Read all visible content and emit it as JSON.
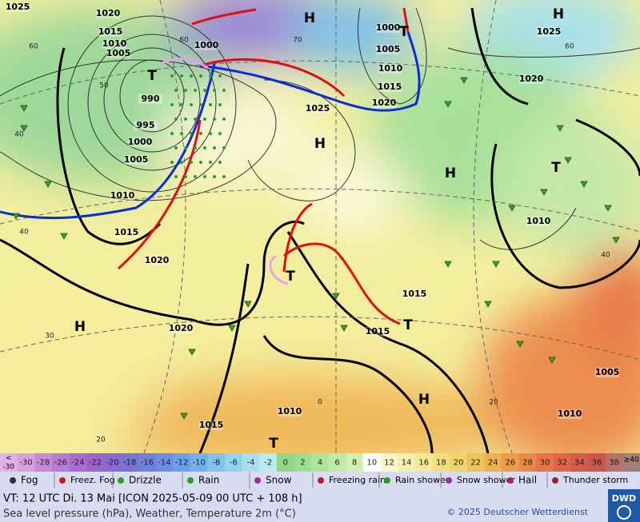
{
  "map": {
    "pressure_labels": [
      "1025",
      "1020",
      "1015",
      "1010",
      "1005",
      "1000",
      "990",
      "995",
      "1000",
      "1005",
      "1010",
      "1015",
      "1020",
      "1020",
      "1025",
      "1000",
      "1005",
      "1010",
      "1015",
      "1020",
      "1025",
      "1020",
      "1010",
      "1015",
      "1015",
      "1010",
      "1015",
      "1010",
      "1005"
    ],
    "pressure_centers": [
      "H",
      "H",
      "T",
      "T",
      "H",
      "H",
      "T",
      "T",
      "H",
      "T",
      "H",
      "T"
    ],
    "temperature_labels": [
      "60",
      "50",
      "40",
      "40",
      "30",
      "20",
      "0",
      "70",
      "60",
      "60",
      "40",
      "20"
    ]
  },
  "colorbar": {
    "low_label": [
      "<",
      "-30"
    ],
    "high_label": [
      "≥40",
      ""
    ],
    "labels": [
      "-30",
      "-28",
      "-26",
      "-24",
      "-22",
      "-20",
      "-18",
      "-16",
      "-14",
      "-12",
      "-10",
      "-8",
      "-6",
      "-4",
      "-2",
      "0",
      "2",
      "4",
      "6",
      "8",
      "10",
      "12",
      "14",
      "16",
      "18",
      "20",
      "22",
      "24",
      "26",
      "28",
      "30",
      "32",
      "34",
      "36",
      "38"
    ],
    "colors": [
      "#d9a0e0",
      "#c88ad8",
      "#b87ad2",
      "#a86ccc",
      "#9a66cc",
      "#8a6ad0",
      "#7a72d6",
      "#6f7fdc",
      "#6a8ee2",
      "#6aa0e6",
      "#72b2ea",
      "#80c4ee",
      "#92d4f0",
      "#a6e0ee",
      "#b8ecea",
      "#8fd88a",
      "#9ede92",
      "#aee49c",
      "#bfeaa8",
      "#d0f0b4",
      "#ffffff",
      "#f9f6c8",
      "#f6f0b0",
      "#f4e894",
      "#f2de7c",
      "#f0d468",
      "#eec45a",
      "#eeb050",
      "#ec9c4a",
      "#ea8846",
      "#e67446",
      "#e06448",
      "#d45a4a",
      "#c8584c",
      "#b8706a"
    ],
    "low_color": "#e0b0e8",
    "high_color": "#a08078"
  },
  "legend": [
    "Fog",
    "Freez. Fog",
    "Drizzle",
    "Rain",
    "Snow",
    "Freezing rain",
    "Rain shower",
    "Snow shower",
    "Hail",
    "Thunder storm"
  ],
  "footer": {
    "line1": "VT: 12 UTC Di.  13 Mai [ICON 2025-05-09  00 UTC + 108 h]",
    "line2": "Sea level pressure (hPa), Weather, Temperature 2m (°C)",
    "copyright": "© 2025 Deutscher Wetterdienst",
    "logo": "DWD"
  }
}
